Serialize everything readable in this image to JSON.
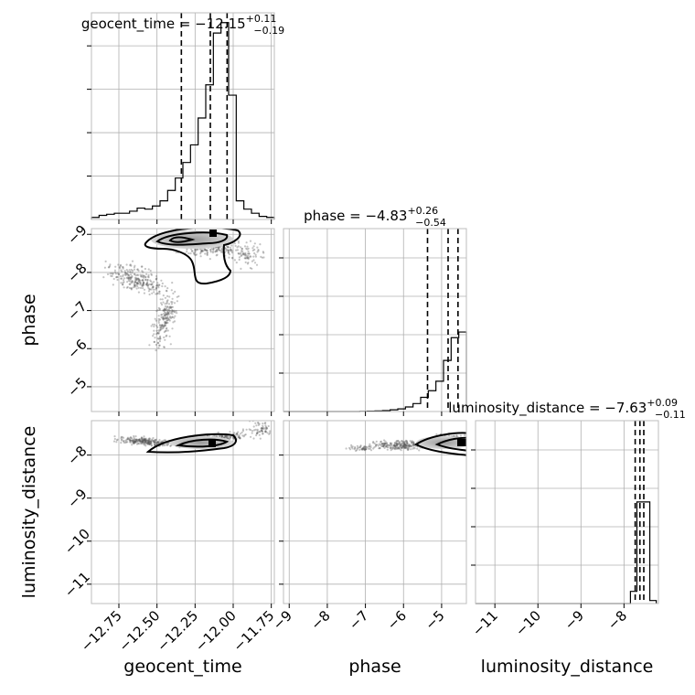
{
  "chart_data": {
    "type": "corner",
    "parameters": [
      "geocent_time",
      "phase",
      "luminosity_distance"
    ],
    "axis_labels": {
      "geocent_time": "geocent_time",
      "phase": "phase",
      "luminosity_distance": "luminosity_distance"
    },
    "ranges": {
      "geocent_time": [
        -12.93,
        -11.73
      ],
      "phase": [
        -9.15,
        -4.35
      ],
      "luminosity_distance": [
        -11.45,
        -7.2
      ]
    },
    "ticks": {
      "geocent_time": [
        -12.75,
        -12.5,
        -12.25,
        -12.0,
        -11.75
      ],
      "phase": [
        -9,
        -8,
        -7,
        -6,
        -5
      ],
      "luminosity_distance": [
        -11,
        -10,
        -9,
        -8
      ]
    },
    "tick_labels": {
      "geocent_time": [
        "−12.75",
        "−12.50",
        "−12.25",
        "−12.00",
        "−11.75"
      ],
      "phase": [
        "−9",
        "−8",
        "−7",
        "−6",
        "−5"
      ],
      "luminosity_distance": [
        "−11",
        "−10",
        "−9",
        "−8"
      ]
    },
    "titles": [
      {
        "prefix": "geocent_time = −12.15",
        "sup": "+0.11",
        "sub": "−0.19"
      },
      {
        "prefix": "phase = −4.83",
        "sup": "+0.26",
        "sub": "−0.54"
      },
      {
        "prefix": "luminosity_distance = −7.63",
        "sup": "+0.09",
        "sub": "−0.11"
      }
    ],
    "quantiles": {
      "geocent_time": [
        -12.34,
        -12.15,
        -12.04
      ],
      "phase": [
        -5.37,
        -4.83,
        -4.57
      ],
      "luminosity_distance": [
        -7.74,
        -7.63,
        -7.54
      ]
    },
    "histograms": {
      "geocent_time": {
        "edges": [
          -12.93,
          -12.88,
          -12.83,
          -12.78,
          -12.73,
          -12.68,
          -12.63,
          -12.58,
          -12.53,
          -12.48,
          -12.43,
          -12.38,
          -12.33,
          -12.28,
          -12.23,
          -12.18,
          -12.13,
          -12.08,
          -12.03,
          -11.98,
          -11.93,
          -11.88,
          -11.83,
          -11.78,
          -11.73
        ],
        "counts": [
          2,
          4,
          5,
          6,
          6,
          8,
          11,
          10,
          13,
          18,
          28,
          40,
          55,
          72,
          98,
          130,
          180,
          190,
          120,
          18,
          10,
          6,
          3,
          2
        ]
      },
      "phase": {
        "edges": [
          -9.15,
          -8.95,
          -8.75,
          -8.55,
          -8.35,
          -8.15,
          -7.95,
          -7.75,
          -7.55,
          -7.35,
          -7.15,
          -6.95,
          -6.75,
          -6.55,
          -6.35,
          -6.15,
          -5.95,
          -5.75,
          -5.55,
          -5.35,
          -5.15,
          -4.95,
          -4.75,
          -4.55,
          -4.35
        ],
        "counts": [
          0,
          0,
          0,
          0,
          0,
          0,
          0,
          0,
          0,
          0,
          1,
          2,
          3,
          5,
          9,
          14,
          24,
          42,
          75,
          110,
          160,
          270,
          390,
          420
        ]
      },
      "luminosity_distance": {
        "edges": [
          -11.45,
          -11.3,
          -11.15,
          -11.0,
          -10.85,
          -10.7,
          -10.55,
          -10.4,
          -10.25,
          -10.1,
          -9.95,
          -9.8,
          -9.65,
          -9.5,
          -9.35,
          -9.2,
          -9.05,
          -8.9,
          -8.75,
          -8.6,
          -8.45,
          -8.3,
          -8.15,
          -8.0,
          -7.85,
          -7.7,
          -7.55,
          -7.4,
          -7.25
        ],
        "counts": [
          0,
          0,
          0,
          0,
          0,
          0,
          0,
          0,
          0,
          0,
          0,
          0,
          0,
          0,
          0,
          0,
          0,
          0,
          0,
          0,
          0,
          0,
          0,
          0,
          12,
          100,
          100,
          3
        ]
      }
    },
    "colors": {
      "contour": "#000000",
      "points": "#555555",
      "grid": "#b0b0b0",
      "frame": "#bdbdbd"
    },
    "grid": true
  }
}
